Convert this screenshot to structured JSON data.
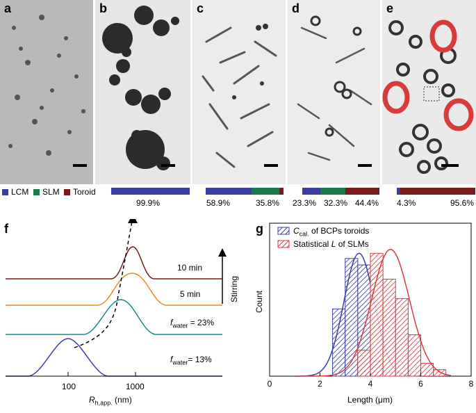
{
  "panels": [
    {
      "label": "a",
      "bar": null
    },
    {
      "label": "b",
      "bar": [
        99.9,
        0,
        0
      ],
      "pcts": [
        "99.9%"
      ]
    },
    {
      "label": "c",
      "bar": [
        58.9,
        35.8,
        5.3
      ],
      "pcts": [
        "58.9%",
        "35.8%"
      ]
    },
    {
      "label": "d",
      "bar": [
        23.3,
        32.3,
        44.4
      ],
      "pcts": [
        "23.3%",
        "32.3%",
        "44.4%"
      ]
    },
    {
      "label": "e",
      "bar": [
        4.3,
        0,
        95.6
      ],
      "pcts": [
        "4.3%",
        "95.6%"
      ]
    }
  ],
  "legend": {
    "lcm": "LCM",
    "slm": "SLM",
    "toroid": "Toroid"
  },
  "colors": {
    "lcm": "#3b3fa3",
    "slm": "#1a7a4a",
    "toroid": "#7a1a1a"
  },
  "panel_f": {
    "label": "f",
    "xlabel_main": "R",
    "xlabel_sub": "h,app.",
    "xlabel_unit": " (nm)",
    "ticks": [
      "100",
      "1000"
    ],
    "stirring": "Stirring",
    "curve_labels": [
      "10 min",
      "5 min",
      "f",
      "f"
    ],
    "fw_sub": "water",
    "fw23": " = 23%",
    "fw13": "= 13%"
  },
  "chart_data": {
    "type": "bar",
    "title": "",
    "xlabel": "Length (μm)",
    "ylabel": "Count",
    "xlim": [
      0,
      8
    ],
    "xticks": [
      "0",
      "2",
      "4",
      "6",
      "8"
    ],
    "bin_edges": [
      2.5,
      3.0,
      3.5,
      4.0,
      4.5,
      5.0,
      5.5,
      6.0,
      6.5,
      7.0
    ],
    "series": [
      {
        "name": "C",
        "name_sub": "cal.",
        "name_rest": " of BCPs toroids",
        "color": "#3b3fa3",
        "values": [
          0.52,
          0.91,
          0.86,
          0.12,
          0,
          0,
          0,
          0,
          0
        ]
      },
      {
        "name": "Statistical ",
        "name_italic": "L",
        "name_rest": " of SLMs",
        "color": "#d93a3a",
        "values": [
          0,
          0,
          0.2,
          0.95,
          0.75,
          0.6,
          0.32,
          0.1,
          0.05
        ]
      }
    ],
    "panel_label": "g"
  }
}
